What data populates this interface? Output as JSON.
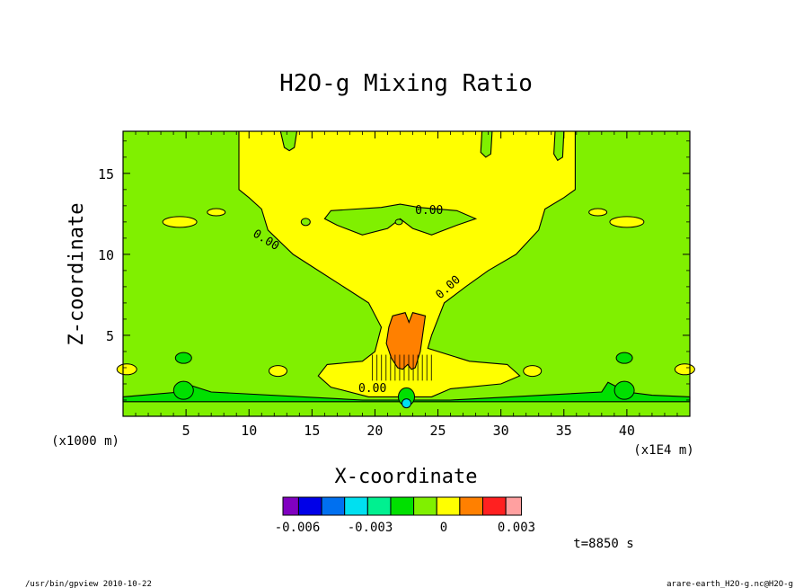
{
  "chart_data": {
    "type": "heatmap",
    "title": "H2O-g Mixing Ratio",
    "xlabel": "X-coordinate",
    "ylabel": "Z-coordinate",
    "x_unit": "(x1E4 m)",
    "y_unit": "(x1000 m)",
    "xlim": [
      0,
      45
    ],
    "ylim": [
      0,
      17.6
    ],
    "x_ticks": [
      "5",
      "10",
      "15",
      "20",
      "25",
      "30",
      "35",
      "40"
    ],
    "y_ticks": [
      "5",
      "10",
      "15"
    ],
    "contour_labels": [
      "0.00",
      "0.00",
      "0.00",
      "0.00"
    ],
    "colorbar": {
      "levels": [
        "-0.006",
        "-0.003",
        "0",
        "0.003"
      ],
      "colors": [
        "#8000c0",
        "#0000e8",
        "#0070f0",
        "#00e0f0",
        "#00f090",
        "#00e000",
        "#80f000",
        "#ffff00",
        "#ff8000",
        "#ff2020",
        "#ffa0a0"
      ]
    },
    "regions": {
      "background": "#80f000",
      "plume": "#ffff00",
      "core": "#ff8000",
      "low": "#00e000",
      "deep": "#00e0f0"
    },
    "annotation_time": "t=8850 s"
  },
  "footer": {
    "left": "/usr/bin/gpview   2010-10-22",
    "right": "arare-earth_H2O-g.nc@H2O-g"
  }
}
